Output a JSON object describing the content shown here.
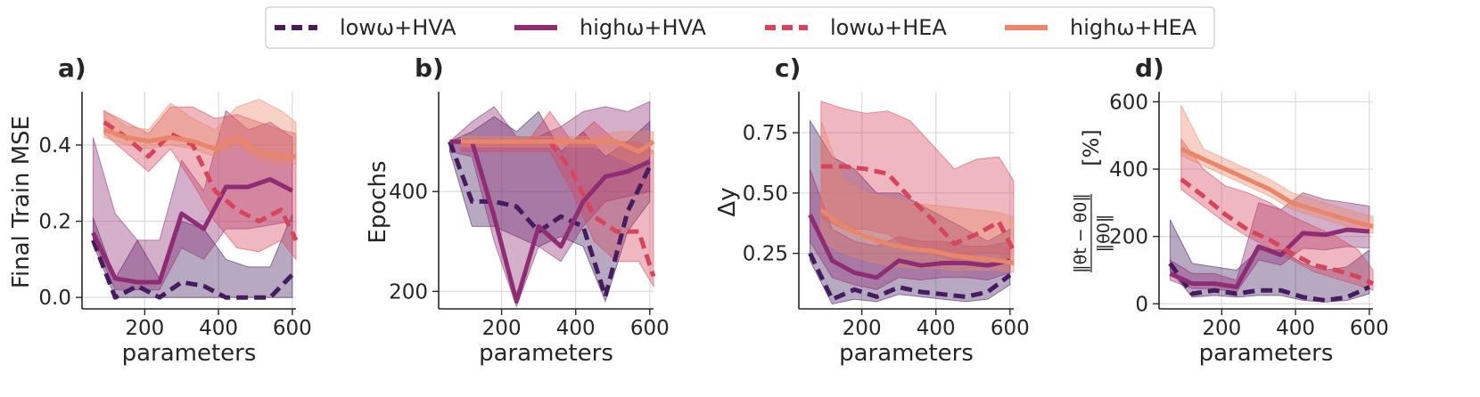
{
  "legend": [
    {
      "key": "low_hva",
      "label": "lowω+HVA",
      "color": "#451c5e",
      "dashed": true
    },
    {
      "key": "high_hva",
      "label": "highω+HVA",
      "color": "#8e2c74",
      "dashed": false
    },
    {
      "key": "low_hea",
      "label": "lowω+HEA",
      "color": "#d6455d",
      "dashed": true
    },
    {
      "key": "high_hea",
      "label": "highω+HEA",
      "color": "#e9866a",
      "dashed": false
    }
  ],
  "chart_data": [
    {
      "type": "line",
      "panel": "a)",
      "xlabel": "parameters",
      "ylabel": "Final Train MSE",
      "xlim": [
        30,
        610
      ],
      "ylim": [
        -0.03,
        0.54
      ],
      "xticks": [
        200,
        400,
        600
      ],
      "yticks": [
        0.0,
        0.2,
        0.4
      ],
      "yticklabels": [
        "0.0",
        "0.2",
        "0.4"
      ],
      "series": [
        {
          "key": "low_hva",
          "x": [
            60,
            120,
            180,
            240,
            300,
            360,
            420,
            480,
            540,
            600
          ],
          "y": [
            0.15,
            0.0,
            0.03,
            0.0,
            0.04,
            0.03,
            0.0,
            0.0,
            0.0,
            0.06
          ],
          "lower": [
            0.14,
            0.0,
            0.0,
            0.0,
            0.0,
            0.0,
            0.0,
            0.0,
            0.0,
            0.0
          ],
          "upper": [
            0.21,
            0.05,
            0.15,
            0.05,
            0.2,
            0.18,
            0.1,
            0.08,
            0.08,
            0.22
          ]
        },
        {
          "key": "high_hva",
          "x": [
            60,
            120,
            180,
            240,
            300,
            360,
            420,
            480,
            540,
            600
          ],
          "y": [
            0.17,
            0.05,
            0.04,
            0.04,
            0.22,
            0.18,
            0.29,
            0.29,
            0.31,
            0.28
          ],
          "lower": [
            0.15,
            0.02,
            0.02,
            0.02,
            0.13,
            0.1,
            0.18,
            0.18,
            0.19,
            0.2
          ],
          "upper": [
            0.42,
            0.22,
            0.15,
            0.15,
            0.36,
            0.28,
            0.49,
            0.44,
            0.46,
            0.42
          ]
        },
        {
          "key": "low_hea",
          "x": [
            90,
            150,
            210,
            270,
            330,
            390,
            450,
            510,
            570,
            610
          ],
          "y": [
            0.46,
            0.42,
            0.37,
            0.43,
            0.4,
            0.28,
            0.23,
            0.2,
            0.23,
            0.15
          ],
          "lower": [
            0.43,
            0.38,
            0.33,
            0.39,
            0.3,
            0.2,
            0.13,
            0.12,
            0.15,
            0.1
          ],
          "upper": [
            0.49,
            0.46,
            0.43,
            0.5,
            0.5,
            0.47,
            0.48,
            0.46,
            0.44,
            0.43
          ]
        },
        {
          "key": "high_hea",
          "x": [
            90,
            150,
            210,
            270,
            330,
            390,
            450,
            510,
            570,
            610
          ],
          "y": [
            0.44,
            0.42,
            0.41,
            0.42,
            0.41,
            0.39,
            0.42,
            0.38,
            0.37,
            0.37
          ],
          "lower": [
            0.42,
            0.4,
            0.39,
            0.4,
            0.39,
            0.37,
            0.4,
            0.36,
            0.35,
            0.35
          ],
          "upper": [
            0.49,
            0.45,
            0.44,
            0.51,
            0.47,
            0.44,
            0.5,
            0.52,
            0.49,
            0.46
          ]
        }
      ]
    },
    {
      "type": "line",
      "panel": "b)",
      "xlabel": "parameters",
      "ylabel": "Epochs",
      "xlim": [
        30,
        610
      ],
      "ylim": [
        165,
        600
      ],
      "xticks": [
        200,
        400,
        600
      ],
      "yticks": [
        200,
        400
      ],
      "yticklabels": [
        "200",
        "400"
      ],
      "series": [
        {
          "key": "low_hva",
          "x": [
            60,
            120,
            180,
            240,
            300,
            360,
            420,
            480,
            540,
            600
          ],
          "y": [
            500,
            380,
            380,
            370,
            320,
            350,
            330,
            190,
            360,
            450
          ],
          "lower": [
            480,
            330,
            330,
            310,
            290,
            310,
            290,
            180,
            320,
            380
          ],
          "upper": [
            500,
            520,
            550,
            520,
            560,
            480,
            520,
            470,
            500,
            540
          ]
        },
        {
          "key": "high_hva",
          "x": [
            60,
            120,
            180,
            240,
            300,
            360,
            420,
            480,
            540,
            600
          ],
          "y": [
            500,
            500,
            350,
            180,
            330,
            290,
            380,
            430,
            440,
            460
          ],
          "lower": [
            480,
            470,
            300,
            170,
            290,
            260,
            330,
            380,
            390,
            400
          ],
          "upper": [
            500,
            540,
            570,
            510,
            510,
            530,
            560,
            570,
            560,
            580
          ]
        },
        {
          "key": "low_hea",
          "x": [
            90,
            150,
            210,
            270,
            330,
            390,
            450,
            510,
            570,
            610
          ],
          "y": [
            500,
            500,
            500,
            500,
            500,
            440,
            350,
            320,
            320,
            230
          ],
          "lower": [
            480,
            480,
            480,
            480,
            480,
            400,
            300,
            260,
            260,
            210
          ],
          "upper": [
            500,
            500,
            500,
            500,
            560,
            500,
            540,
            500,
            500,
            480
          ]
        },
        {
          "key": "high_hea",
          "x": [
            90,
            150,
            210,
            270,
            330,
            390,
            450,
            510,
            570,
            610
          ],
          "y": [
            500,
            500,
            500,
            500,
            500,
            500,
            500,
            500,
            480,
            500
          ],
          "lower": [
            490,
            490,
            490,
            490,
            490,
            490,
            490,
            470,
            450,
            480
          ],
          "upper": [
            510,
            510,
            510,
            510,
            510,
            510,
            510,
            520,
            520,
            520
          ]
        }
      ]
    },
    {
      "type": "line",
      "panel": "c)",
      "xlabel": "parameters",
      "ylabel": "Δy",
      "xlim": [
        30,
        610
      ],
      "ylim": [
        0.02,
        0.92
      ],
      "xticks": [
        200,
        400,
        600
      ],
      "yticks": [
        0.25,
        0.5,
        0.75
      ],
      "yticklabels": [
        "0.25",
        "0.50",
        "0.75"
      ],
      "series": [
        {
          "key": "low_hva",
          "x": [
            60,
            120,
            180,
            240,
            300,
            360,
            420,
            480,
            540,
            600
          ],
          "y": [
            0.25,
            0.06,
            0.1,
            0.07,
            0.11,
            0.09,
            0.08,
            0.07,
            0.09,
            0.16
          ],
          "lower": [
            0.22,
            0.04,
            0.06,
            0.05,
            0.08,
            0.07,
            0.06,
            0.05,
            0.06,
            0.12
          ],
          "upper": [
            0.8,
            0.65,
            0.6,
            0.5,
            0.5,
            0.45,
            0.4,
            0.35,
            0.3,
            0.35
          ]
        },
        {
          "key": "high_hva",
          "x": [
            60,
            120,
            180,
            240,
            300,
            360,
            420,
            480,
            540,
            600
          ],
          "y": [
            0.41,
            0.22,
            0.17,
            0.15,
            0.22,
            0.2,
            0.21,
            0.21,
            0.2,
            0.22
          ],
          "lower": [
            0.3,
            0.15,
            0.12,
            0.1,
            0.15,
            0.14,
            0.15,
            0.15,
            0.14,
            0.17
          ],
          "upper": [
            0.6,
            0.35,
            0.3,
            0.28,
            0.32,
            0.3,
            0.3,
            0.28,
            0.28,
            0.3
          ]
        },
        {
          "key": "low_hea",
          "x": [
            90,
            150,
            210,
            270,
            330,
            390,
            450,
            510,
            570,
            610
          ],
          "y": [
            0.61,
            0.61,
            0.6,
            0.58,
            0.48,
            0.39,
            0.29,
            0.33,
            0.38,
            0.26
          ],
          "lower": [
            0.4,
            0.35,
            0.35,
            0.33,
            0.27,
            0.25,
            0.22,
            0.25,
            0.25,
            0.2
          ],
          "upper": [
            0.88,
            0.85,
            0.83,
            0.84,
            0.8,
            0.7,
            0.6,
            0.64,
            0.65,
            0.55
          ]
        },
        {
          "key": "high_hea",
          "x": [
            90,
            150,
            210,
            270,
            330,
            390,
            450,
            510,
            570,
            610
          ],
          "y": [
            0.43,
            0.36,
            0.32,
            0.29,
            0.27,
            0.26,
            0.24,
            0.23,
            0.22,
            0.21
          ],
          "lower": [
            0.3,
            0.25,
            0.22,
            0.2,
            0.19,
            0.19,
            0.18,
            0.18,
            0.18,
            0.17
          ],
          "upper": [
            0.8,
            0.55,
            0.5,
            0.48,
            0.46,
            0.45,
            0.44,
            0.43,
            0.42,
            0.4
          ]
        }
      ]
    },
    {
      "type": "line",
      "panel": "d)",
      "xlabel": "parameters",
      "ylabel": "‖θt − θ0‖ / ‖θ0‖   [%]",
      "xlim": [
        30,
        610
      ],
      "ylim": [
        -15,
        630
      ],
      "xticks": [
        200,
        400,
        600
      ],
      "yticks": [
        0,
        200,
        400,
        600
      ],
      "yticklabels": [
        "0",
        "200",
        "400",
        "600"
      ],
      "series": [
        {
          "key": "low_hva",
          "x": [
            60,
            120,
            180,
            240,
            300,
            360,
            420,
            480,
            540,
            600
          ],
          "y": [
            120,
            30,
            40,
            30,
            40,
            40,
            20,
            10,
            20,
            50
          ],
          "lower": [
            100,
            20,
            25,
            20,
            25,
            25,
            10,
            5,
            10,
            30
          ],
          "upper": [
            250,
            120,
            110,
            100,
            160,
            160,
            120,
            100,
            110,
            160
          ]
        },
        {
          "key": "high_hva",
          "x": [
            60,
            120,
            180,
            240,
            300,
            360,
            420,
            480,
            540,
            600
          ],
          "y": [
            90,
            60,
            60,
            50,
            170,
            145,
            210,
            205,
            220,
            215
          ],
          "lower": [
            70,
            45,
            45,
            35,
            130,
            115,
            165,
            160,
            170,
            165
          ],
          "upper": [
            130,
            90,
            90,
            70,
            300,
            280,
            330,
            310,
            300,
            290
          ]
        },
        {
          "key": "low_hea",
          "x": [
            90,
            150,
            210,
            270,
            330,
            390,
            450,
            510,
            570,
            610
          ],
          "y": [
            370,
            320,
            265,
            220,
            190,
            150,
            115,
            100,
            80,
            60
          ],
          "lower": [
            340,
            290,
            240,
            200,
            165,
            130,
            95,
            75,
            55,
            40
          ],
          "upper": [
            490,
            400,
            350,
            330,
            300,
            260,
            230,
            200,
            160,
            100
          ]
        },
        {
          "key": "high_hea",
          "x": [
            90,
            150,
            210,
            270,
            330,
            390,
            450,
            510,
            570,
            610
          ],
          "y": [
            460,
            430,
            400,
            370,
            340,
            300,
            280,
            260,
            240,
            230
          ],
          "lower": [
            440,
            410,
            380,
            350,
            320,
            280,
            260,
            240,
            220,
            210
          ],
          "upper": [
            590,
            460,
            430,
            400,
            370,
            330,
            310,
            290,
            270,
            260
          ]
        }
      ]
    }
  ]
}
